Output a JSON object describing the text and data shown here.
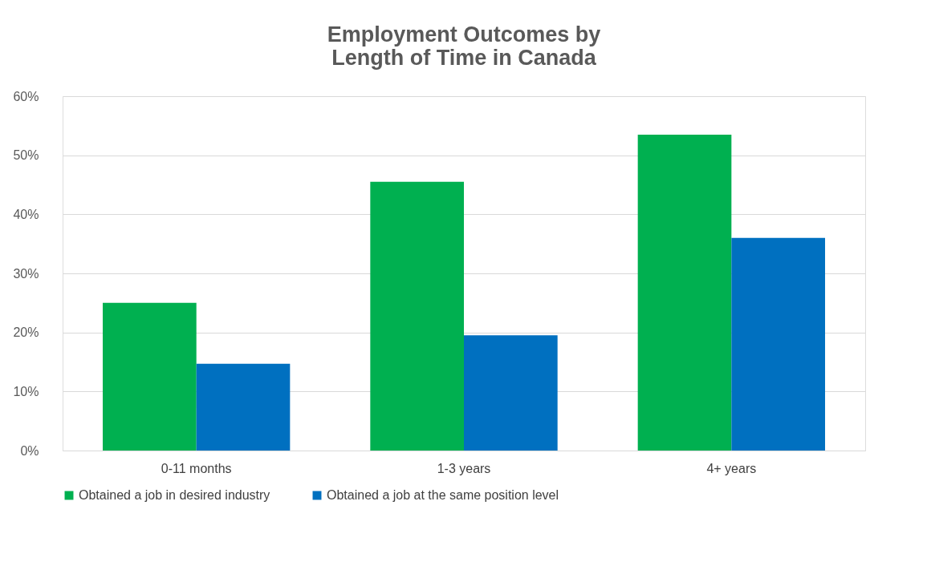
{
  "chart_data": {
    "type": "bar",
    "title": [
      "Employment Outcomes by",
      "Length of Time in Canada"
    ],
    "categories": [
      "0-11 months",
      "1-3 years",
      "4+ years"
    ],
    "series": [
      {
        "name": "Obtained a job in desired industry",
        "color": "#00b050",
        "values": [
          25,
          45.5,
          53.5
        ]
      },
      {
        "name": "Obtained a job at the same position level",
        "color": "#0070c0",
        "values": [
          14.7,
          19.5,
          36
        ]
      }
    ],
    "ylim": [
      0,
      60
    ],
    "yticks": [
      {
        "value": 0,
        "label": "0%"
      },
      {
        "value": 10,
        "label": "10%"
      },
      {
        "value": 20,
        "label": "20%"
      },
      {
        "value": 30,
        "label": "30%"
      },
      {
        "value": 40,
        "label": "40%"
      },
      {
        "value": 50,
        "label": "50%"
      },
      {
        "value": 60,
        "label": "60%"
      }
    ],
    "grid": "y",
    "legend": "bottom"
  }
}
